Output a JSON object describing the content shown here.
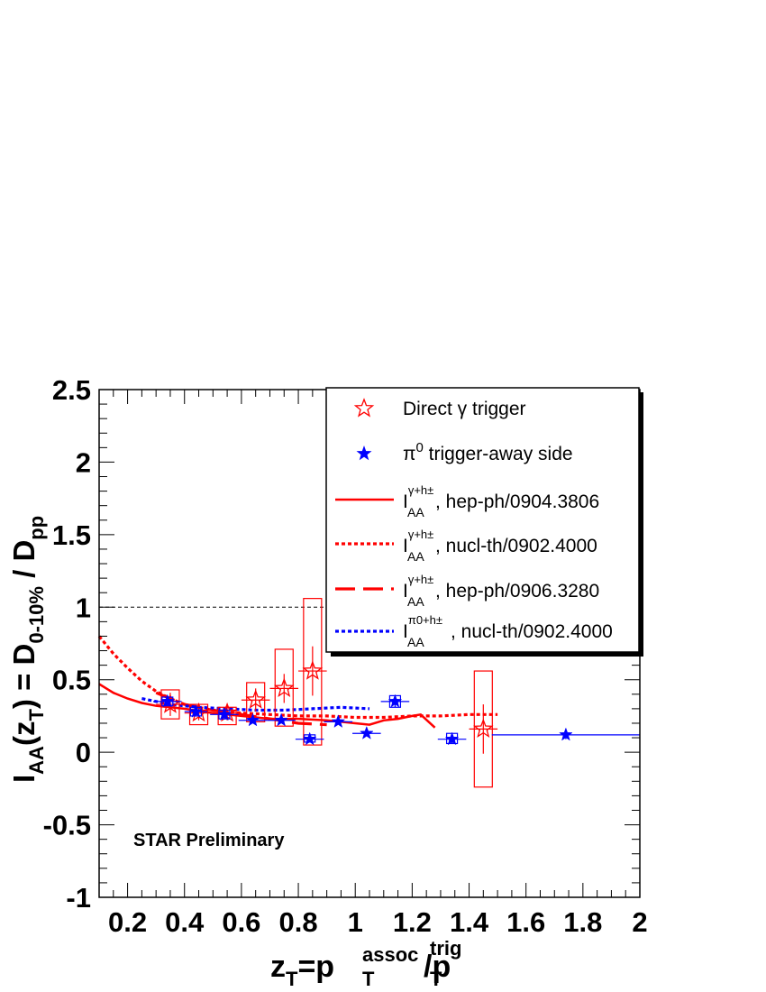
{
  "chart_data": {
    "type": "scatter",
    "xlabel": {
      "base": "z",
      "sub1": "T",
      "eq": "=p",
      "sup2": "assoc",
      "sub2": "T",
      "slash": "/p",
      "sup3": "trig",
      "sub3": "T"
    },
    "ylabel": {
      "base": "I",
      "sub1": "AA",
      "open": "(z",
      "sub2": "T",
      "mid": ") = D",
      "sub3": "0-10%",
      "slash": " / D",
      "sub4": "pp"
    },
    "xlim": [
      0.1,
      2.0
    ],
    "ylim": [
      -1.0,
      2.5
    ],
    "x_ticks": [
      "0.2",
      "0.4",
      "0.6",
      "0.8",
      "1",
      "1.2",
      "1.4",
      "1.6",
      "1.8",
      "2"
    ],
    "y_ticks": [
      "-1",
      "-0.5",
      "0",
      "0.5",
      "1",
      "1.5",
      "2",
      "2.5"
    ],
    "reference_line": {
      "y": 1.0,
      "style": "dashed"
    },
    "annotation": "STAR Preliminary",
    "legend_position": "top-right",
    "colors": {
      "red": "#ff0000",
      "blue": "#0000ff"
    },
    "series": [
      {
        "name": "Direct γ trigger",
        "marker": "open-star",
        "color": "#ff0000",
        "points": [
          {
            "x": 0.35,
            "y": 0.33,
            "xerr": 0.05,
            "yerr": 0.08,
            "sys": [
              0.23,
              0.43
            ]
          },
          {
            "x": 0.45,
            "y": 0.27,
            "xerr": 0.05,
            "yerr": 0.05,
            "sys": [
              0.19,
              0.33
            ]
          },
          {
            "x": 0.55,
            "y": 0.27,
            "xerr": 0.05,
            "yerr": 0.05,
            "sys": [
              0.19,
              0.31
            ]
          },
          {
            "x": 0.65,
            "y": 0.36,
            "xerr": 0.05,
            "yerr": 0.08,
            "sys": [
              0.21,
              0.48
            ]
          },
          {
            "x": 0.75,
            "y": 0.44,
            "xerr": 0.05,
            "yerr": 0.1,
            "sys": [
              0.18,
              0.71
            ]
          },
          {
            "x": 0.85,
            "y": 0.56,
            "xerr": 0.05,
            "yerr": 0.17,
            "sys": [
              0.05,
              1.06
            ]
          },
          {
            "x": 1.45,
            "y": 0.16,
            "xerr": 0.05,
            "yerr": 0.17,
            "sys": [
              -0.24,
              0.56
            ]
          }
        ]
      },
      {
        "name": "π0 trigger-away side",
        "legend_label": {
          "base": "π",
          "sup": "0",
          "rest": " trigger-away side"
        },
        "marker": "filled-star",
        "color": "#0000ff",
        "points": [
          {
            "x": 0.34,
            "y": 0.35,
            "xerr": 0.05,
            "yerr": 0.03,
            "sys": [
              0.32,
              0.38
            ]
          },
          {
            "x": 0.44,
            "y": 0.28,
            "xerr": 0.04,
            "yerr": 0.03,
            "sys": [
              0.25,
              0.31
            ]
          },
          {
            "x": 0.54,
            "y": 0.26,
            "xerr": 0.05,
            "yerr": 0.03,
            "sys": [
              0.23,
              0.29
            ]
          },
          {
            "x": 0.64,
            "y": 0.22,
            "xerr": 0.05,
            "yerr": 0.02
          },
          {
            "x": 0.74,
            "y": 0.22,
            "xerr": 0.05,
            "yerr": 0.02
          },
          {
            "x": 0.84,
            "y": 0.09,
            "xerr": 0.05,
            "yerr": 0.02,
            "sys": [
              0.07,
              0.12
            ]
          },
          {
            "x": 0.94,
            "y": 0.21,
            "xerr": 0.05,
            "yerr": 0.02
          },
          {
            "x": 1.04,
            "y": 0.13,
            "xerr": 0.05,
            "yerr": 0.02
          },
          {
            "x": 1.14,
            "y": 0.35,
            "xerr": 0.05,
            "yerr": 0.04,
            "sys": [
              0.31,
              0.39
            ]
          },
          {
            "x": 1.34,
            "y": 0.09,
            "xerr": 0.05,
            "yerr": 0.03,
            "sys": [
              0.06,
              0.13
            ]
          },
          {
            "x": 1.74,
            "y": 0.12,
            "xerr": 0.26,
            "yerr": 0.03
          }
        ]
      }
    ],
    "curves": [
      {
        "name": "hep-ph/0904.3806",
        "legend_label": {
          "base": "I",
          "sup": "γ+h±",
          "sub": "AA",
          "rest": ", hep-ph/0904.3806"
        },
        "style": "solid",
        "color": "#ff0000",
        "x": [
          0.1,
          0.15,
          0.2,
          0.25,
          0.3,
          0.4,
          0.5,
          0.6,
          0.7,
          0.8,
          0.9,
          1.0,
          1.05,
          1.1,
          1.15,
          1.2,
          1.23,
          1.28
        ],
        "y": [
          0.47,
          0.41,
          0.37,
          0.34,
          0.32,
          0.3,
          0.27,
          0.25,
          0.23,
          0.23,
          0.22,
          0.2,
          0.19,
          0.22,
          0.23,
          0.25,
          0.26,
          0.17
        ]
      },
      {
        "name": "nucl-th/0902.4000",
        "legend_label": {
          "base": "I",
          "sup": "γ+h±",
          "sub": "AA",
          "rest": ", nucl-th/0902.4000"
        },
        "style": "dotted",
        "color": "#ff0000",
        "x": [
          0.1,
          0.15,
          0.2,
          0.25,
          0.3,
          0.35,
          0.4,
          0.5,
          0.6,
          0.7,
          0.8,
          0.9,
          1.0,
          1.1,
          1.2,
          1.3,
          1.4,
          1.5
        ],
        "y": [
          0.8,
          0.68,
          0.58,
          0.49,
          0.42,
          0.37,
          0.33,
          0.29,
          0.27,
          0.26,
          0.25,
          0.25,
          0.24,
          0.24,
          0.25,
          0.25,
          0.26,
          0.26
        ]
      },
      {
        "name": "hep-ph/0906.3280",
        "legend_label": {
          "base": "I",
          "sup": "γ+h±",
          "sub": "AA",
          "rest": ", hep-ph/0906.3280"
        },
        "style": "dashed",
        "color": "#ff0000",
        "x": [
          0.3,
          0.4,
          0.5,
          0.6,
          0.7,
          0.8,
          0.9
        ],
        "y": [
          0.41,
          0.33,
          0.29,
          0.26,
          0.23,
          0.2,
          0.19
        ]
      },
      {
        "name": "nucl-th/0902.4000",
        "legend_label": {
          "base": "I",
          "sup": "π0+h±",
          "sub": "AA",
          "rest": ", nucl-th/0902.4000"
        },
        "style": "dotted",
        "color": "#0000ff",
        "x": [
          0.25,
          0.35,
          0.45,
          0.55,
          0.65,
          0.75,
          0.85,
          0.95,
          1.05
        ],
        "y": [
          0.37,
          0.33,
          0.31,
          0.3,
          0.29,
          0.29,
          0.3,
          0.31,
          0.3
        ]
      }
    ]
  }
}
